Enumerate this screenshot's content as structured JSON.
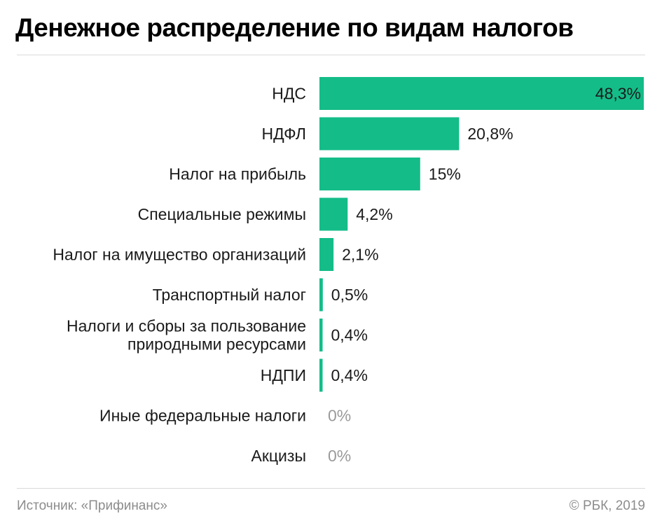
{
  "header": {
    "title": "Денежное распределение по видам налогов"
  },
  "footer": {
    "source": "Источник: «Прифинанс»",
    "copyright": "© РБК, 2019"
  },
  "colors": {
    "bar": "#14bc88",
    "label": "#1a1a1a",
    "zero_label": "#9a9a9a"
  },
  "chart_data": {
    "type": "bar",
    "orientation": "horizontal",
    "title": "Денежное распределение по видам налогов",
    "categories": [
      [
        "НДС"
      ],
      [
        "НДФЛ"
      ],
      [
        "Налог на прибыль"
      ],
      [
        "Специальные режимы"
      ],
      [
        "Налог на имущество организаций"
      ],
      [
        "Транспортный налог"
      ],
      [
        "Налоги и сборы за пользование",
        "природными ресурсами"
      ],
      [
        "НДПИ"
      ],
      [
        "Иные федеральные налоги"
      ],
      [
        "Акцизы"
      ]
    ],
    "values": [
      48.3,
      20.8,
      15,
      4.2,
      2.1,
      0.5,
      0.4,
      0.4,
      0,
      0
    ],
    "value_labels": [
      "48,3%",
      "20,8%",
      "15%",
      "4,2%",
      "2,1%",
      "0,5%",
      "0,4%",
      "0,4%",
      "0%",
      "0%"
    ],
    "xlim": [
      0,
      48.3
    ],
    "grid": false,
    "legend": "none"
  }
}
